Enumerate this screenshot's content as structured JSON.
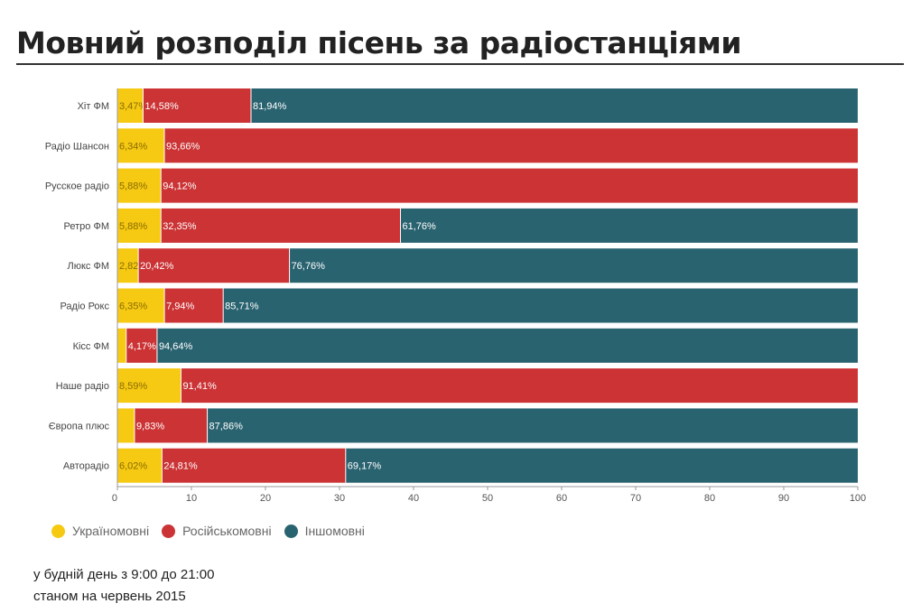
{
  "chart_data": {
    "type": "bar",
    "orientation": "horizontal",
    "stacked": true,
    "title": "Мовний розподіл пісень за радіостанціями",
    "categories": [
      "Хіт ФМ",
      "Радіо Шансон",
      "Русское радіо",
      "Ретро ФМ",
      "Люкс ФМ",
      "Радіо Рокс",
      "Кісс ФМ",
      "Наше радіо",
      "Європа плюс",
      "Авторадіо"
    ],
    "series": [
      {
        "name": "Україномовні",
        "color": "#f6c913",
        "values": [
          3.47,
          6.34,
          5.88,
          5.88,
          2.82,
          6.35,
          1.19,
          8.59,
          2.31,
          6.02
        ],
        "labels": [
          "3,47%",
          "6,34%",
          "5,88%",
          "5,88%",
          "2,82",
          "6,35%",
          "",
          "8,59%",
          "",
          "6,02%"
        ]
      },
      {
        "name": "Російськомовні",
        "color": "#cb3335",
        "values": [
          14.58,
          93.66,
          94.12,
          32.35,
          20.42,
          7.94,
          4.17,
          91.41,
          9.83,
          24.81
        ],
        "labels": [
          "14,58%",
          "93,66%",
          "94,12%",
          "32,35%",
          "20,42%",
          "7,94%",
          "4,17%",
          "91,41%",
          "9,83%",
          "24,81%"
        ]
      },
      {
        "name": "Іншомовні",
        "color": "#2a6370",
        "values": [
          81.94,
          0,
          0,
          61.76,
          76.76,
          85.71,
          94.64,
          0,
          87.86,
          69.17
        ],
        "labels": [
          "81,94%",
          "",
          "",
          "61,76%",
          "76,76%",
          "85,71%",
          "94,64%",
          "",
          "87,86%",
          "69,17%"
        ]
      }
    ],
    "xlim": [
      0,
      100
    ],
    "xticks": [
      "0",
      "10",
      "20",
      "30",
      "40",
      "50",
      "60",
      "70",
      "80",
      "90",
      "100"
    ],
    "grid": false,
    "legend_position": "bottom-left"
  },
  "notes": [
    "у будній день з 9:00 до 21:00",
    "станом на червень 2015"
  ]
}
